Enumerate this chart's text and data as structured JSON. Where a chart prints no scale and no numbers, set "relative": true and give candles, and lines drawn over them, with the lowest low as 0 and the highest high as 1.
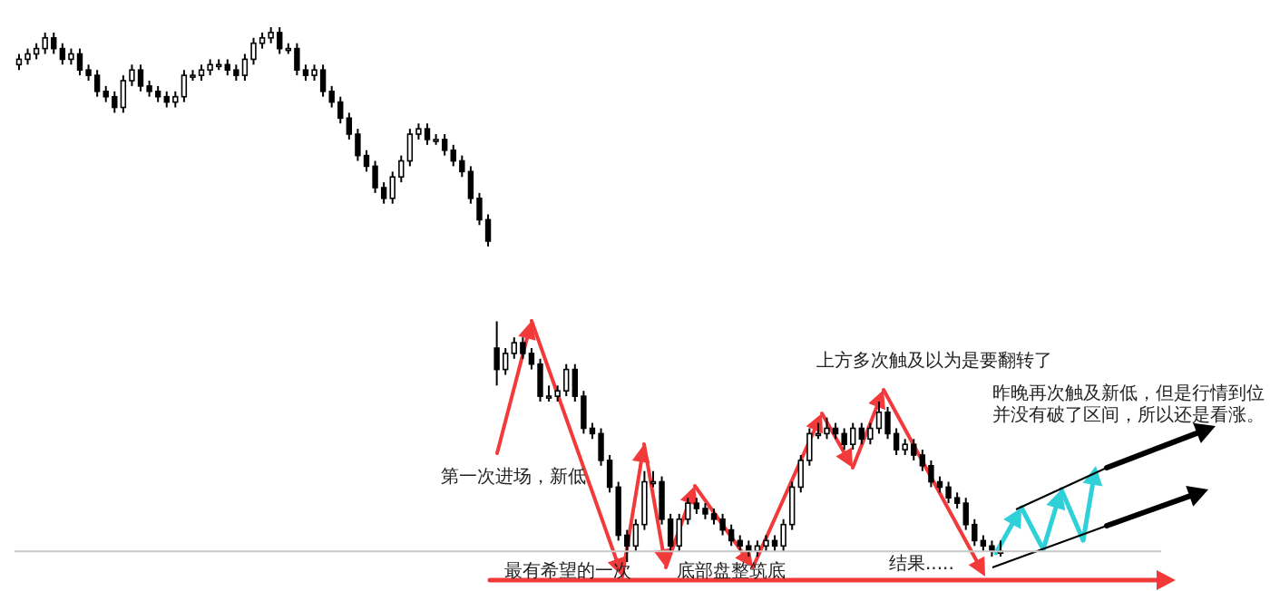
{
  "chart_data": {
    "type": "candlestick",
    "relative": true,
    "categories": [
      null,
      null,
      null,
      null,
      null,
      null,
      null,
      null,
      null,
      null,
      null,
      null,
      null,
      null,
      null,
      null,
      null,
      null,
      null,
      null,
      null,
      null,
      null,
      null,
      null,
      null,
      null,
      null,
      null,
      null,
      null,
      null,
      null,
      null,
      null,
      null,
      null,
      null,
      null,
      null,
      null,
      null,
      null,
      null,
      null,
      null,
      null,
      null,
      null,
      null,
      null,
      null,
      null,
      null,
      null,
      null,
      null,
      null,
      null,
      null,
      null,
      null,
      null,
      null,
      null,
      null,
      null,
      null,
      null,
      null,
      null,
      null,
      null,
      null,
      null,
      null,
      null,
      null,
      null,
      null,
      null,
      null,
      null,
      null,
      null,
      null,
      null,
      null,
      null,
      null,
      null,
      null,
      null,
      null,
      null,
      null,
      null,
      null,
      null,
      null,
      null,
      null,
      null,
      null,
      null,
      null,
      null,
      null,
      null,
      null,
      null,
      null,
      null,
      null,
      null,
      null,
      null,
      null,
      null,
      null,
      null,
      null,
      null,
      null,
      null,
      null,
      null,
      null,
      null,
      null,
      null,
      null
    ],
    "ohlc": [
      [
        0.93,
        0.95,
        0.92,
        0.94
      ],
      [
        0.94,
        0.96,
        0.93,
        0.95
      ],
      [
        0.95,
        0.97,
        0.94,
        0.96
      ],
      [
        0.96,
        0.99,
        0.95,
        0.98
      ],
      [
        0.98,
        0.99,
        0.95,
        0.96
      ],
      [
        0.96,
        0.97,
        0.93,
        0.94
      ],
      [
        0.94,
        0.96,
        0.93,
        0.95
      ],
      [
        0.95,
        0.96,
        0.91,
        0.92
      ],
      [
        0.92,
        0.93,
        0.9,
        0.91
      ],
      [
        0.91,
        0.92,
        0.87,
        0.88
      ],
      [
        0.88,
        0.89,
        0.86,
        0.87
      ],
      [
        0.87,
        0.88,
        0.84,
        0.85
      ],
      [
        0.85,
        0.91,
        0.84,
        0.9
      ],
      [
        0.9,
        0.93,
        0.89,
        0.92
      ],
      [
        0.92,
        0.93,
        0.88,
        0.89
      ],
      [
        0.89,
        0.9,
        0.87,
        0.88
      ],
      [
        0.88,
        0.89,
        0.86,
        0.87
      ],
      [
        0.87,
        0.88,
        0.85,
        0.86
      ],
      [
        0.86,
        0.88,
        0.85,
        0.87
      ],
      [
        0.87,
        0.92,
        0.86,
        0.91
      ],
      [
        0.91,
        0.92,
        0.9,
        0.91
      ],
      [
        0.91,
        0.93,
        0.9,
        0.92
      ],
      [
        0.92,
        0.94,
        0.91,
        0.93
      ],
      [
        0.93,
        0.94,
        0.92,
        0.93
      ],
      [
        0.93,
        0.94,
        0.91,
        0.92
      ],
      [
        0.92,
        0.93,
        0.9,
        0.91
      ],
      [
        0.91,
        0.95,
        0.9,
        0.94
      ],
      [
        0.94,
        0.98,
        0.93,
        0.97
      ],
      [
        0.97,
        0.99,
        0.96,
        0.98
      ],
      [
        0.98,
        1.0,
        0.97,
        0.99
      ],
      [
        0.99,
        1.0,
        0.95,
        0.96
      ],
      [
        0.96,
        0.97,
        0.95,
        0.96
      ],
      [
        0.96,
        0.97,
        0.91,
        0.92
      ],
      [
        0.92,
        0.93,
        0.9,
        0.91
      ],
      [
        0.91,
        0.93,
        0.9,
        0.92
      ],
      [
        0.92,
        0.93,
        0.87,
        0.88
      ],
      [
        0.88,
        0.89,
        0.85,
        0.86
      ],
      [
        0.86,
        0.87,
        0.82,
        0.83
      ],
      [
        0.83,
        0.84,
        0.79,
        0.8
      ],
      [
        0.8,
        0.81,
        0.75,
        0.76
      ],
      [
        0.76,
        0.77,
        0.73,
        0.74
      ],
      [
        0.74,
        0.75,
        0.69,
        0.7
      ],
      [
        0.7,
        0.71,
        0.67,
        0.68
      ],
      [
        0.68,
        0.73,
        0.67,
        0.72
      ],
      [
        0.72,
        0.76,
        0.71,
        0.75
      ],
      [
        0.75,
        0.81,
        0.74,
        0.8
      ],
      [
        0.8,
        0.82,
        0.79,
        0.81
      ],
      [
        0.81,
        0.82,
        0.78,
        0.79
      ],
      [
        0.79,
        0.8,
        0.78,
        0.79
      ],
      [
        0.79,
        0.8,
        0.76,
        0.77
      ],
      [
        0.77,
        0.78,
        0.74,
        0.75
      ],
      [
        0.75,
        0.76,
        0.72,
        0.73
      ],
      [
        0.73,
        0.74,
        0.67,
        0.68
      ],
      [
        0.68,
        0.69,
        0.63,
        0.64
      ],
      [
        0.64,
        0.65,
        0.59,
        0.6
      ],
      [
        0.4,
        0.45,
        0.33,
        0.36
      ],
      [
        0.36,
        0.4,
        0.35,
        0.39
      ],
      [
        0.39,
        0.42,
        0.38,
        0.41
      ],
      [
        0.41,
        0.42,
        0.38,
        0.39
      ],
      [
        0.39,
        0.4,
        0.36,
        0.37
      ],
      [
        0.37,
        0.38,
        0.3,
        0.31
      ],
      [
        0.31,
        0.33,
        0.3,
        0.31
      ],
      [
        0.31,
        0.33,
        0.3,
        0.32
      ],
      [
        0.32,
        0.37,
        0.31,
        0.36
      ],
      [
        0.36,
        0.37,
        0.3,
        0.31
      ],
      [
        0.31,
        0.32,
        0.24,
        0.25
      ],
      [
        0.25,
        0.26,
        0.23,
        0.24
      ],
      [
        0.24,
        0.25,
        0.18,
        0.19
      ],
      [
        0.19,
        0.2,
        0.13,
        0.14
      ],
      [
        0.14,
        0.15,
        0.04,
        0.05
      ],
      [
        0.05,
        0.06,
        0.0,
        0.03
      ],
      [
        0.03,
        0.08,
        0.02,
        0.07
      ],
      [
        0.07,
        0.17,
        0.06,
        0.15
      ],
      [
        0.15,
        0.17,
        0.14,
        0.15
      ],
      [
        0.15,
        0.16,
        0.07,
        0.08
      ],
      [
        0.08,
        0.09,
        0.02,
        0.03
      ],
      [
        0.03,
        0.09,
        0.02,
        0.08
      ],
      [
        0.08,
        0.12,
        0.07,
        0.11
      ],
      [
        0.11,
        0.12,
        0.09,
        0.1
      ],
      [
        0.1,
        0.11,
        0.08,
        0.09
      ],
      [
        0.09,
        0.1,
        0.07,
        0.08
      ],
      [
        0.08,
        0.09,
        0.05,
        0.06
      ],
      [
        0.06,
        0.07,
        0.03,
        0.04
      ],
      [
        0.04,
        0.05,
        0.02,
        0.03
      ],
      [
        0.03,
        0.04,
        0.01,
        0.02
      ],
      [
        0.02,
        0.04,
        0.01,
        0.03
      ],
      [
        0.03,
        0.05,
        0.02,
        0.04
      ],
      [
        0.04,
        0.05,
        0.02,
        0.03
      ],
      [
        0.03,
        0.08,
        0.02,
        0.07
      ],
      [
        0.07,
        0.15,
        0.06,
        0.14
      ],
      [
        0.14,
        0.2,
        0.13,
        0.19
      ],
      [
        0.19,
        0.25,
        0.18,
        0.24
      ],
      [
        0.24,
        0.26,
        0.23,
        0.24
      ],
      [
        0.24,
        0.27,
        0.23,
        0.25
      ],
      [
        0.25,
        0.26,
        0.23,
        0.24
      ],
      [
        0.24,
        0.25,
        0.21,
        0.22
      ],
      [
        0.22,
        0.26,
        0.21,
        0.25
      ],
      [
        0.25,
        0.26,
        0.22,
        0.23
      ],
      [
        0.23,
        0.26,
        0.22,
        0.25
      ],
      [
        0.25,
        0.3,
        0.24,
        0.28
      ],
      [
        0.28,
        0.29,
        0.23,
        0.24
      ],
      [
        0.24,
        0.25,
        0.2,
        0.21
      ],
      [
        0.21,
        0.23,
        0.2,
        0.22
      ],
      [
        0.22,
        0.23,
        0.19,
        0.2
      ],
      [
        0.2,
        0.21,
        0.17,
        0.18
      ],
      [
        0.18,
        0.19,
        0.14,
        0.15
      ],
      [
        0.15,
        0.16,
        0.13,
        0.14
      ],
      [
        0.14,
        0.15,
        0.11,
        0.12
      ],
      [
        0.12,
        0.13,
        0.1,
        0.11
      ],
      [
        0.11,
        0.12,
        0.06,
        0.07
      ],
      [
        0.07,
        0.08,
        0.03,
        0.04
      ],
      [
        0.04,
        0.05,
        0.02,
        0.03
      ],
      [
        0.03,
        0.04,
        0.01,
        0.02
      ],
      [
        0.02,
        0.04,
        0.01,
        0.02
      ],
      null,
      null,
      null,
      null,
      null,
      null,
      null,
      null,
      null,
      null,
      null,
      null,
      null,
      null,
      null,
      null,
      null,
      null
    ],
    "ref_lines": [
      {
        "axis": "y",
        "value": 0.02,
        "color": "#c8c8c8"
      }
    ],
    "annotations": [
      "第一次进场，新低",
      "最有希望的一次",
      "底部盘整筑底",
      "上方多次触及以为是要翻转了",
      "结果.....",
      "昨晚再次触及新低，但是行情到位",
      "并没有破了区间，所以还是看涨。"
    ]
  }
}
